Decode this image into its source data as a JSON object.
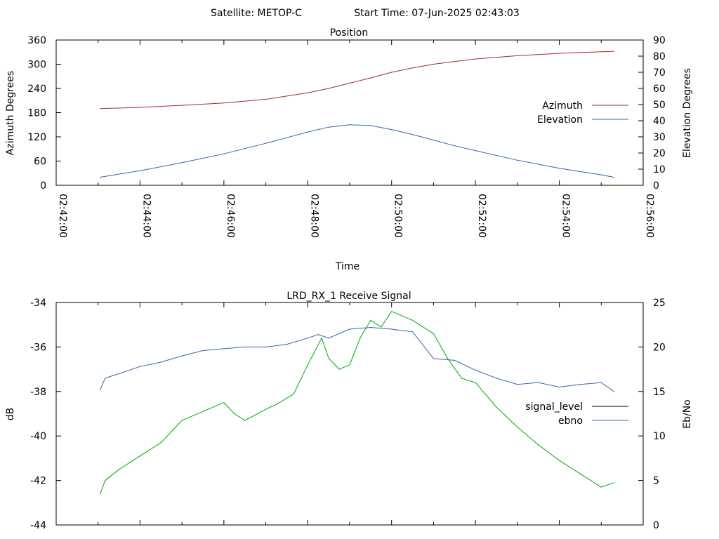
{
  "page": {
    "header_satellite": "Satellite: METOP-C",
    "header_start": "Start Time: 07-Jun-2025 02:43:03"
  },
  "chart_data": [
    {
      "type": "line",
      "title": "Position",
      "xlabel": "Time",
      "ylabel": "Azimuth Degrees",
      "y2label": "Elevation Degrees",
      "xlim": [
        "02:42:00",
        "02:56:00"
      ],
      "ylim": [
        0,
        360
      ],
      "y2lim": [
        0,
        90
      ],
      "x_ticks": [
        "02:42:00",
        "02:44:00",
        "02:46:00",
        "02:48:00",
        "02:50:00",
        "02:52:00",
        "02:54:00",
        "02:56:00"
      ],
      "y_ticks": [
        "0",
        "60",
        "120",
        "180",
        "240",
        "300",
        "360"
      ],
      "y2_ticks": [
        "0",
        "10",
        "20",
        "30",
        "40",
        "50",
        "60",
        "70",
        "80",
        "90"
      ],
      "legend_position": "right",
      "series": [
        {
          "name": "Azimuth",
          "axis": "y",
          "color": "#a52a2a",
          "x": [
            "02:43:03",
            "02:44:00",
            "02:45:00",
            "02:46:00",
            "02:47:00",
            "02:48:00",
            "02:48:30",
            "02:49:00",
            "02:49:30",
            "02:50:00",
            "02:50:30",
            "02:51:00",
            "02:52:00",
            "02:53:00",
            "02:54:00",
            "02:55:00",
            "02:55:18"
          ],
          "values": [
            190,
            193,
            198,
            204,
            213,
            229,
            240,
            253,
            266,
            280,
            291,
            300,
            313,
            321,
            327,
            331,
            332
          ]
        },
        {
          "name": "Elevation",
          "axis": "y2",
          "color": "#3366aa",
          "x": [
            "02:43:03",
            "02:44:00",
            "02:45:00",
            "02:46:00",
            "02:47:00",
            "02:47:30",
            "02:48:00",
            "02:48:30",
            "02:49:00",
            "02:49:30",
            "02:50:00",
            "02:50:30",
            "02:51:00",
            "02:51:30",
            "02:52:00",
            "02:53:00",
            "02:54:00",
            "02:55:00",
            "02:55:18"
          ],
          "values": [
            5,
            9,
            14,
            19.5,
            26,
            29.5,
            33,
            36,
            37.5,
            37,
            34.5,
            31.5,
            28,
            24.5,
            21.5,
            15.5,
            10.5,
            6.5,
            5
          ]
        }
      ]
    },
    {
      "type": "line",
      "title": "LRD_RX_1 Receive Signal",
      "xlabel": "",
      "ylabel": "dB",
      "y2label": "Eb/No",
      "xlim": [
        "02:42:00",
        "02:56:00"
      ],
      "ylim": [
        -44,
        -34
      ],
      "y2lim": [
        0,
        25
      ],
      "y_ticks": [
        "-44",
        "-42",
        "-40",
        "-38",
        "-36",
        "-34"
      ],
      "y2_ticks": [
        "0",
        "5",
        "10",
        "15",
        "20",
        "25"
      ],
      "legend_position": "right",
      "series": [
        {
          "name": "signal_level",
          "axis": "y",
          "color": "#00aa00",
          "x": [
            "02:43:03",
            "02:43:10",
            "02:43:30",
            "02:44:00",
            "02:44:30",
            "02:45:00",
            "02:45:30",
            "02:46:00",
            "02:46:15",
            "02:46:30",
            "02:47:00",
            "02:47:20",
            "02:47:40",
            "02:48:00",
            "02:48:20",
            "02:48:30",
            "02:48:45",
            "02:49:00",
            "02:49:15",
            "02:49:30",
            "02:49:45",
            "02:50:00",
            "02:50:30",
            "02:51:00",
            "02:51:20",
            "02:51:40",
            "02:52:00",
            "02:52:30",
            "02:53:00",
            "02:53:30",
            "02:54:00",
            "02:54:30",
            "02:55:00",
            "02:55:18"
          ],
          "values": [
            -42.6,
            -42.0,
            -41.5,
            -40.9,
            -40.3,
            -39.3,
            -38.9,
            -38.5,
            -39.0,
            -39.3,
            -38.8,
            -38.5,
            -38.1,
            -36.8,
            -35.6,
            -36.5,
            -37.0,
            -36.8,
            -35.6,
            -34.8,
            -35.1,
            -34.4,
            -34.8,
            -35.4,
            -36.5,
            -37.4,
            -37.6,
            -38.7,
            -39.6,
            -40.4,
            -41.1,
            -41.7,
            -42.3,
            -42.1
          ]
        },
        {
          "name": "ebno",
          "axis": "y2",
          "color": "#3366aa",
          "x": [
            "02:43:03",
            "02:43:10",
            "02:43:30",
            "02:44:00",
            "02:44:30",
            "02:45:00",
            "02:45:30",
            "02:46:00",
            "02:46:30",
            "02:47:00",
            "02:47:30",
            "02:48:00",
            "02:48:15",
            "02:48:30",
            "02:49:00",
            "02:49:30",
            "02:50:00",
            "02:50:30",
            "02:51:00",
            "02:51:30",
            "02:52:00",
            "02:52:30",
            "02:53:00",
            "02:53:30",
            "02:54:00",
            "02:54:30",
            "02:55:00",
            "02:55:18"
          ],
          "values": [
            15.2,
            16.5,
            17.0,
            17.8,
            18.3,
            19.0,
            19.6,
            19.8,
            20.0,
            20.0,
            20.3,
            21.0,
            21.4,
            21.0,
            22.0,
            22.2,
            22.0,
            21.7,
            18.7,
            18.5,
            17.4,
            16.5,
            15.8,
            16.0,
            15.5,
            15.8,
            16.0,
            15.0
          ]
        }
      ]
    }
  ]
}
